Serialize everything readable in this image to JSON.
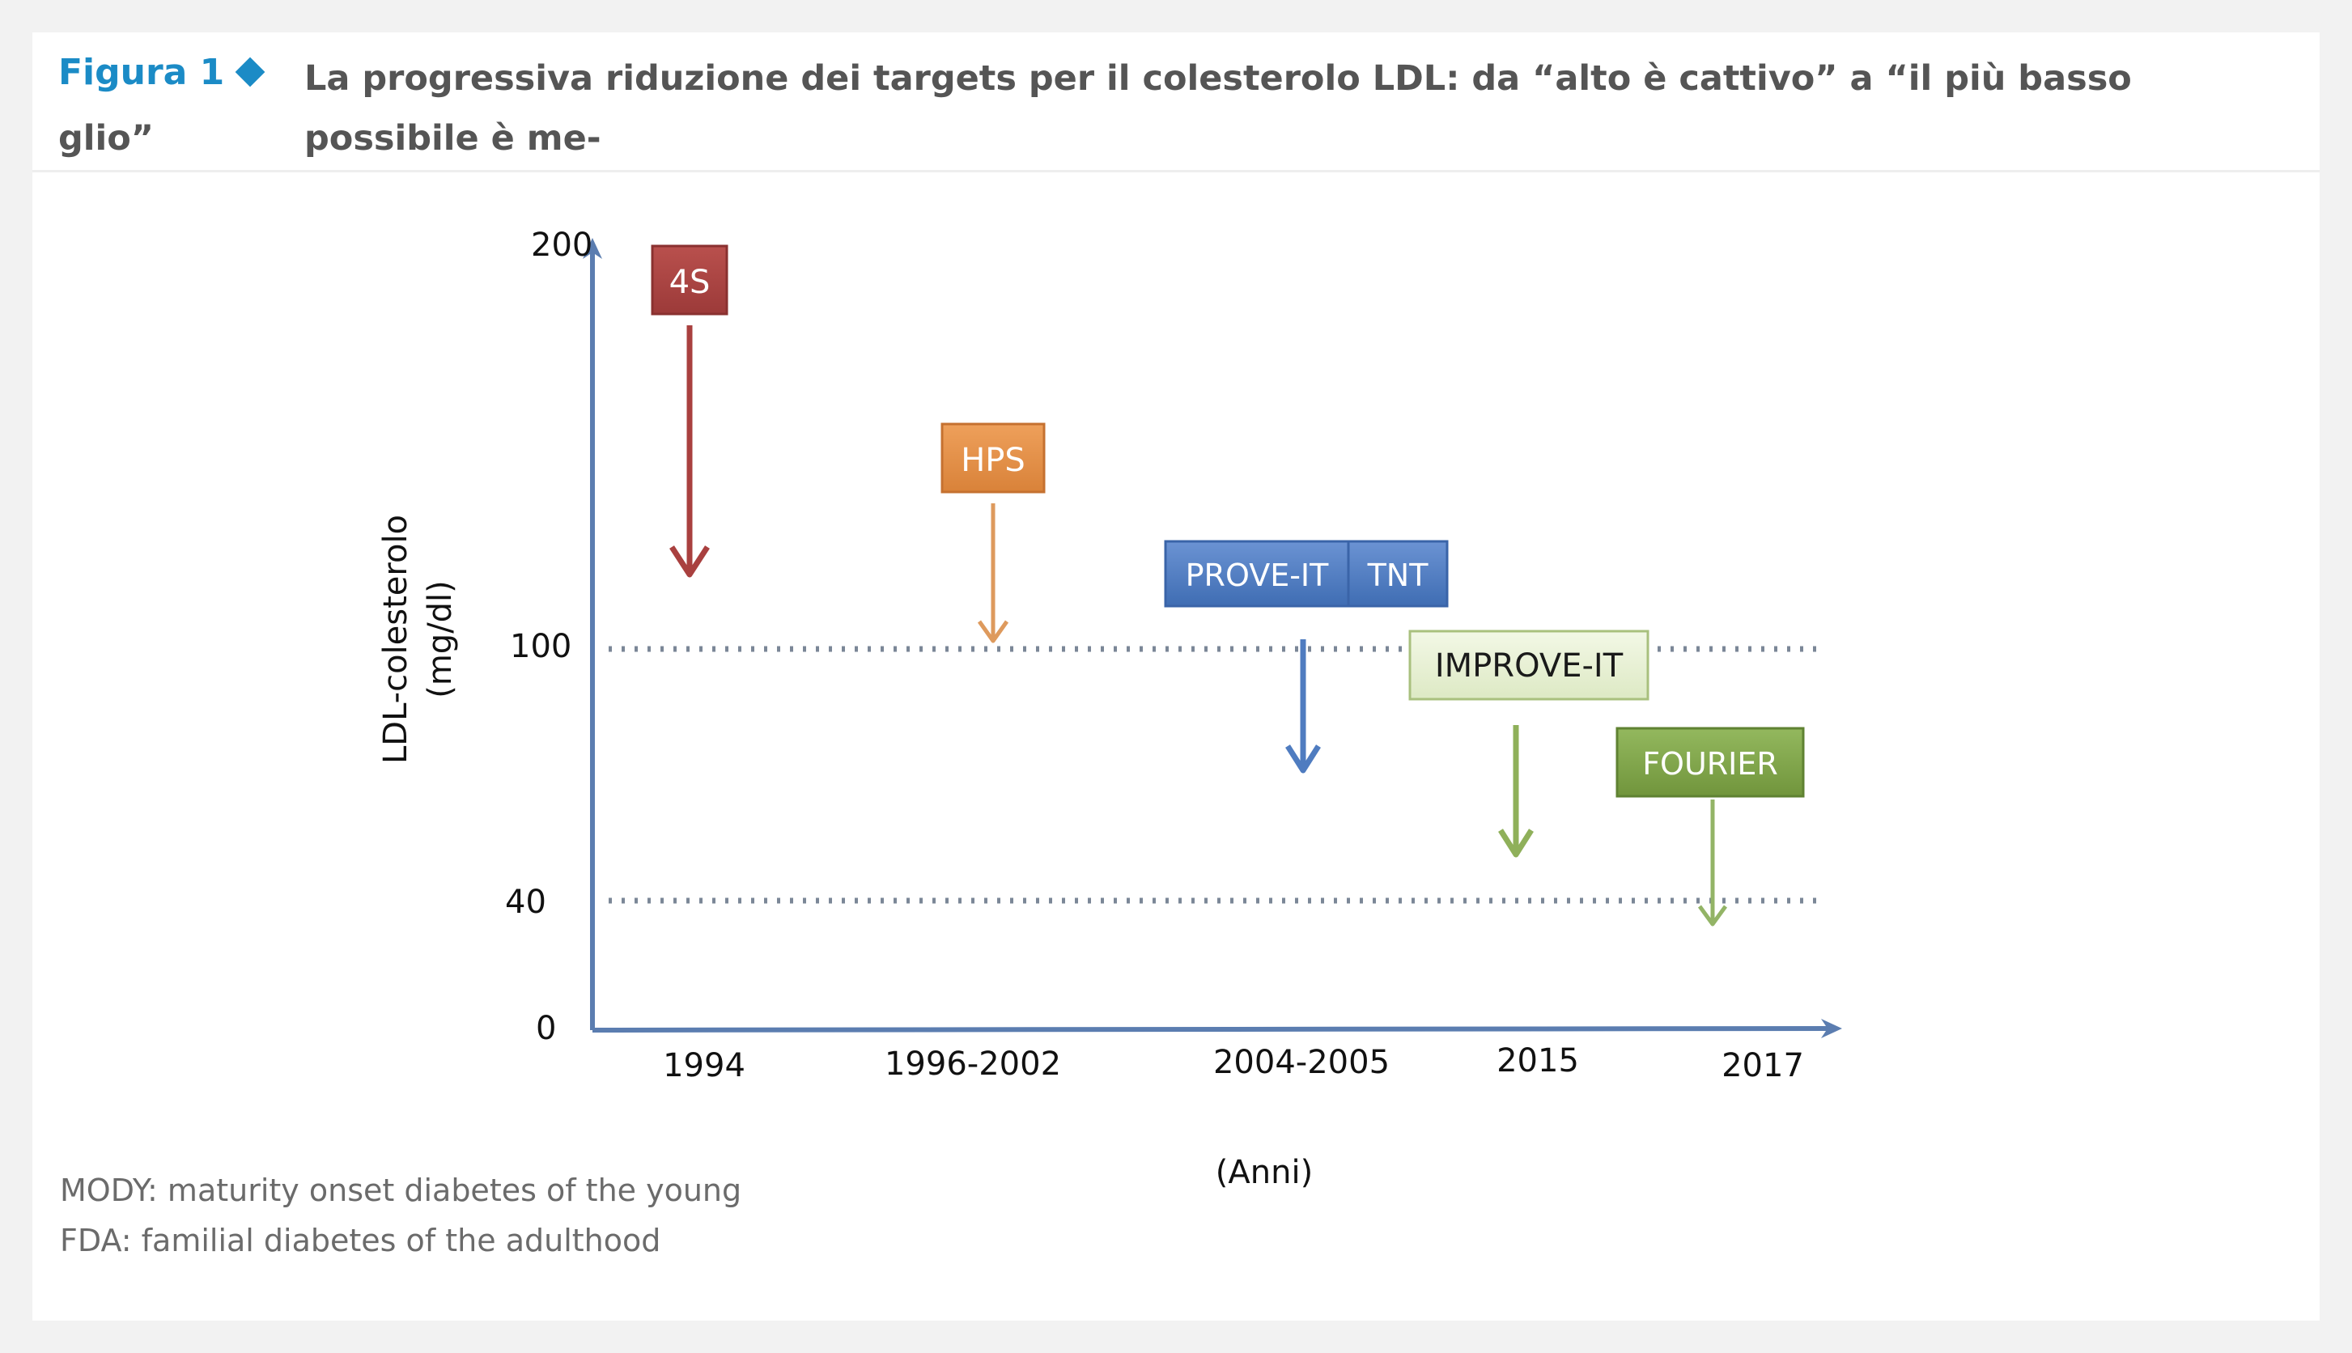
{
  "figure": {
    "label": "Figura 1",
    "title_line1": "La progressiva riduzione dei targets per il colesterolo LDL: da “alto è cattivo” a “il più basso possibile è me-",
    "title_line2": "glio”"
  },
  "chart_data": {
    "type": "timeline-arrows",
    "ylabel_line1": "LDL-colesterolo",
    "ylabel_line2": "(mg/dl)",
    "xlabel": "(Anni)",
    "y_ticks": [
      200,
      100,
      40,
      0
    ],
    "reference_lines": [
      100,
      40
    ],
    "periods": [
      "1994",
      "1996-2002",
      "2004-2005",
      "2015",
      "2017"
    ],
    "studies": [
      {
        "label": "4S",
        "period": "1994",
        "target": 115,
        "color": "#a9403f"
      },
      {
        "label": "HPS",
        "period": "1996-2002",
        "target": 100,
        "color": "#de8b47"
      },
      {
        "label": "PROVE-IT",
        "period": "2004-2005",
        "target": 70,
        "color": "#4f7cc0"
      },
      {
        "label": "TNT",
        "period": "2004-2005",
        "target": 70,
        "color": "#4f7cc0"
      },
      {
        "label": "IMPROVE-IT",
        "period": "2015",
        "target": 55,
        "color": "#8fb05a"
      },
      {
        "label": "FOURIER",
        "period": "2017",
        "target": 30,
        "color": "#7ea34a"
      }
    ]
  },
  "footnotes": [
    "MODY: maturity onset diabetes of the young",
    "FDA: familial diabetes of the adulthood"
  ]
}
